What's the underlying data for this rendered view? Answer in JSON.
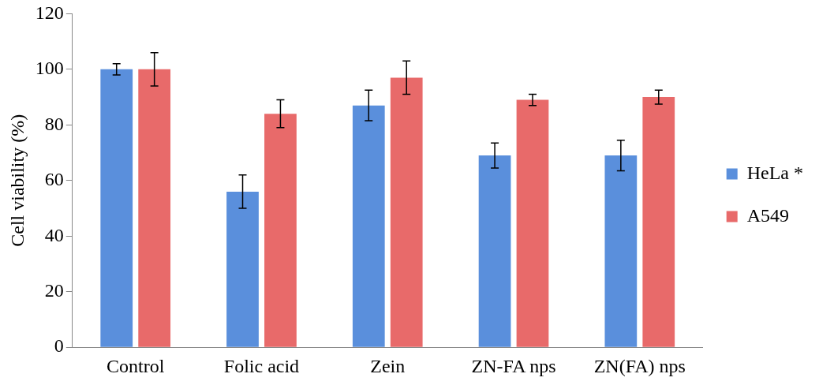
{
  "chart_data": {
    "type": "bar",
    "ylabel": "Cell viability (%)",
    "categories": [
      "Control",
      "Folic acid",
      "Zein",
      "ZN-FA nps",
      "ZN(FA) nps"
    ],
    "series": [
      {
        "name": "HeLa *",
        "color": "#5a8fdc",
        "values": [
          100,
          56,
          87,
          69,
          69
        ],
        "errors": [
          2,
          6,
          5.5,
          4.5,
          5.5
        ]
      },
      {
        "name": "A549",
        "color": "#e86a6a",
        "values": [
          100,
          84,
          97,
          89,
          90
        ],
        "errors": [
          6,
          5,
          6,
          2,
          2.5
        ]
      }
    ],
    "ylim": [
      0,
      120
    ],
    "yticks": [
      0,
      20,
      40,
      60,
      80,
      100,
      120
    ],
    "grid": false,
    "legend": "right"
  }
}
